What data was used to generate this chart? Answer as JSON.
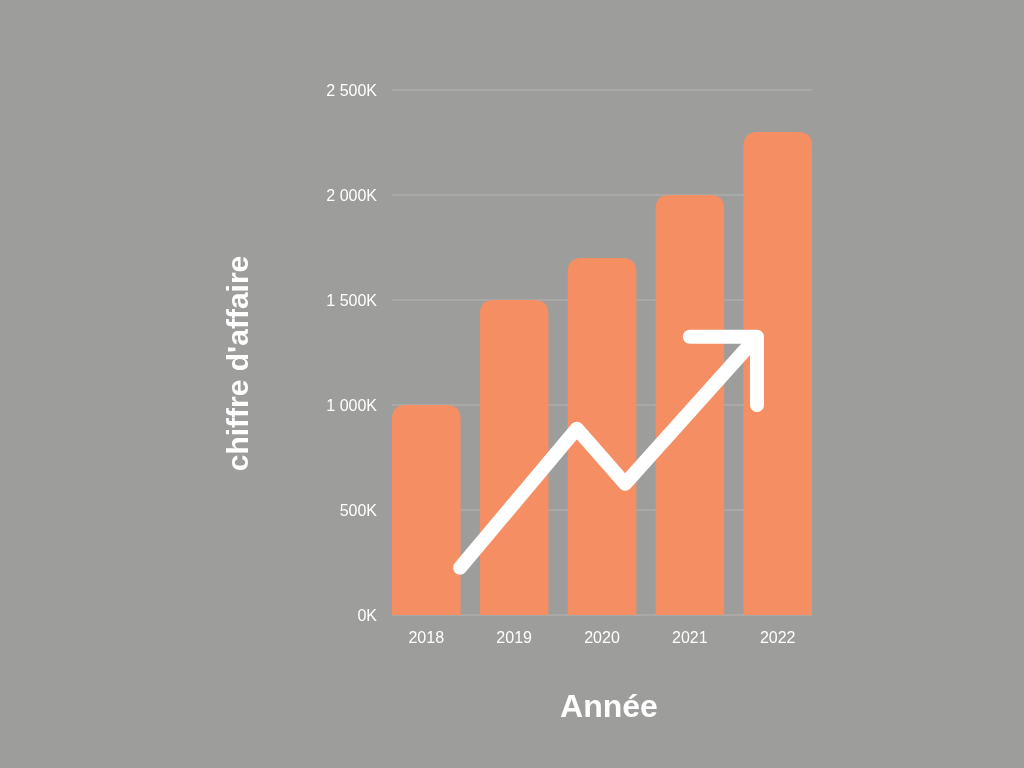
{
  "chart_data": {
    "type": "bar",
    "xlabel": "Année",
    "ylabel": "chiffre d'affaire",
    "categories": [
      "2018",
      "2019",
      "2020",
      "2021",
      "2022"
    ],
    "values": [
      1000,
      1500,
      1700,
      2000,
      2300
    ],
    "color": "#f58f63",
    "ylim": [
      0,
      2500
    ],
    "yticks": [
      {
        "value": 0,
        "label": "0K"
      },
      {
        "value": 500,
        "label": "500K"
      },
      {
        "value": 1000,
        "label": "1 000K"
      },
      {
        "value": 1500,
        "label": "1 500K"
      },
      {
        "value": 2000,
        "label": "2 000K"
      },
      {
        "value": 2500,
        "label": "2 500K"
      }
    ],
    "grid": "y"
  }
}
